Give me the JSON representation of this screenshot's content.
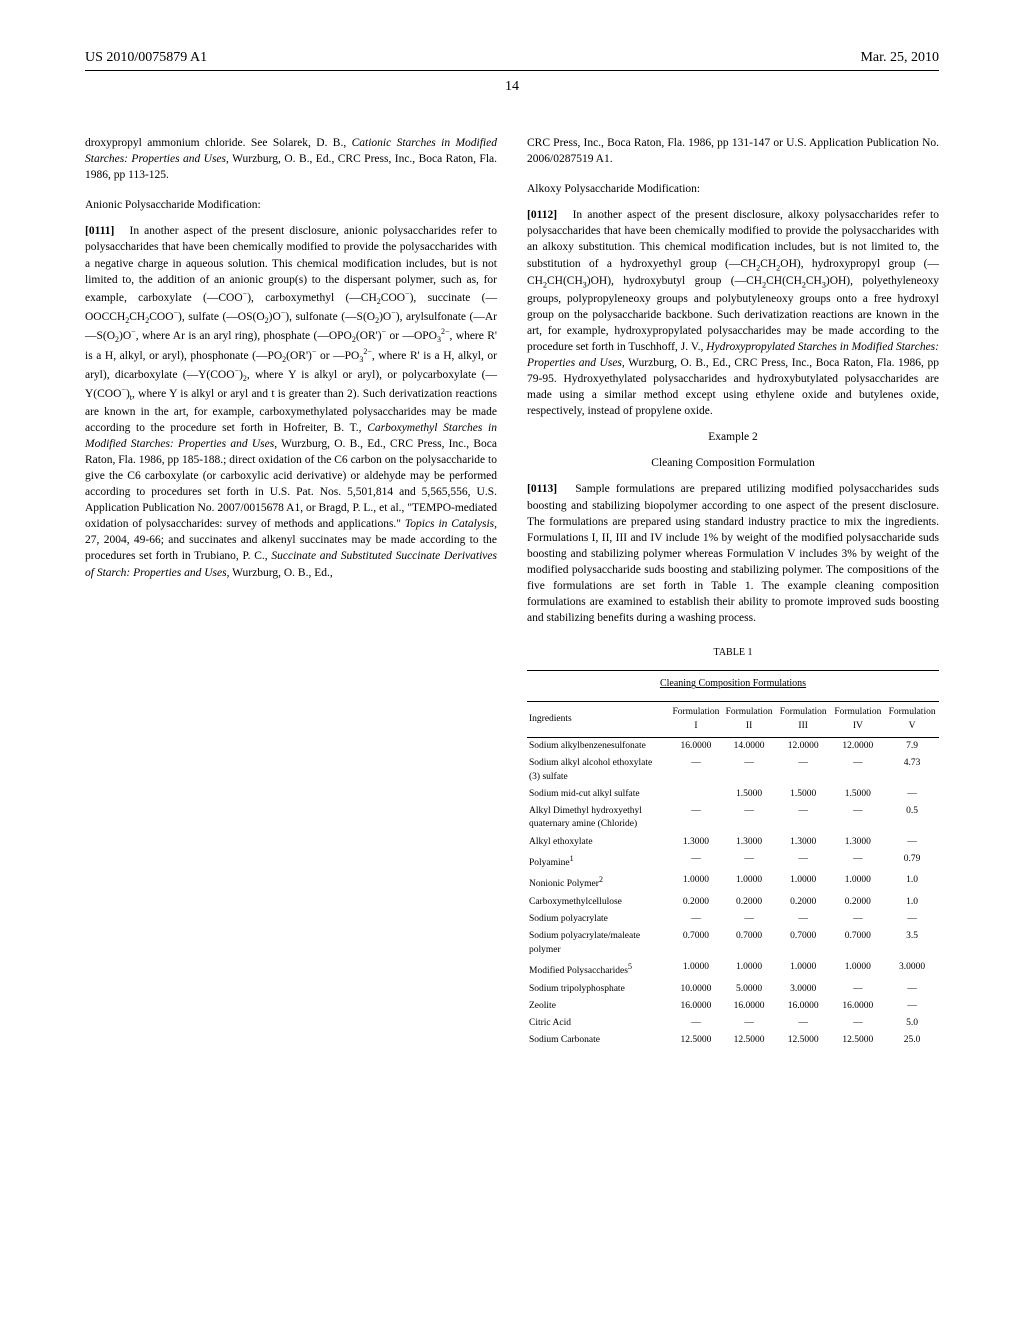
{
  "header": {
    "pub_number": "US 2010/0075879 A1",
    "date": "Mar. 25, 2010"
  },
  "page_number": "14",
  "left_col": {
    "para1": "droxypropyl ammonium chloride. See Solarek, D. B., Cationic Starches in Modified Starches: Properties and Uses, Wurzburg, O. B., Ed., CRC Press, Inc., Boca Raton, Fla. 1986, pp 113-125.",
    "section1_title": "Anionic Polysaccharide Modification:",
    "para2_num": "[0111]",
    "para2": "In another aspect of the present disclosure, anionic polysaccharides refer to polysaccharides that have been chemically modified to provide the polysaccharides with a negative charge in aqueous solution. This chemical modification includes, but is not limited to, the addition of an anionic group(s) to the dispersant polymer, such as, for example, carboxylate (—COO⁻), carboxymethyl (—CH₂COO⁻), succinate (—OOCCH₂CH₂COO⁻), sulfate (—OS(O₂)O⁻), sulfonate (—S(O₂)O⁻), arylsulfonate (—Ar—S(O₂)O⁻, where Ar is an aryl ring), phosphate (—OPO₂(OR')⁻ or —OPO₃²⁻, where R' is a H, alkyl, or aryl), phosphonate (—PO₂(OR')⁻ or —PO₃²⁻, where R' is a H, alkyl, or aryl), dicarboxylate (—Y(COO⁻)₂, where Y is alkyl or aryl), or polycarboxylate (—Y(COO⁻)ₜ, where Y is alkyl or aryl and t is greater than 2). Such derivatization reactions are known in the art, for example, carboxymethylated polysaccharides may be made according to the procedure set forth in Hofreiter, B. T., Carboxymethyl Starches in Modified Starches: Properties and Uses, Wurzburg, O. B., Ed., CRC Press, Inc., Boca Raton, Fla. 1986, pp 185-188.; direct oxidation of the C6 carbon on the polysaccharide to give the C6 carboxylate (or carboxylic acid derivative) or aldehyde may be performed according to procedures set forth in U.S. Pat. Nos. 5,501,814 and 5,565,556, U.S. Application Publication No. 2007/0015678 A1, or Bragd, P. L., et al., \"TEMPO-mediated oxidation of polysaccharides: survey of methods and applications.\" Topics in Catalysis, 27, 2004, 49-66; and succinates and alkenyl succinates may be made according to the procedures set forth in Trubiano, P. C., Succinate and Substituted Succinate Derivatives of Starch: Properties and Uses, Wurzburg, O. B., Ed.,"
  },
  "right_col": {
    "para1": "CRC Press, Inc., Boca Raton, Fla. 1986, pp 131-147 or U.S. Application Publication No. 2006/0287519 A1.",
    "section1_title": "Alkoxy Polysaccharide Modification:",
    "para2_num": "[0112]",
    "para2": "In another aspect of the present disclosure, alkoxy polysaccharides refer to polysaccharides that have been chemically modified to provide the polysaccharides with an alkoxy substitution. This chemical modification includes, but is not limited to, the substitution of a hydroxyethyl group (—CH₂CH₂OH), hydroxypropyl group (—CH₂CH(CH₃)OH), hydroxybutyl group (—CH₂CH(CH₂CH₃)OH), polyethyleneoxy groups, polypropyleneoxy groups and polybutyleneoxy groups onto a free hydroxyl group on the polysaccharide backbone. Such derivatization reactions are known in the art, for example, hydroxypropylated polysaccharides may be made according to the procedure set forth in Tuschhoff, J. V., Hydroxypropylated Starches in Modified Starches: Properties and Uses, Wurzburg, O. B., Ed., CRC Press, Inc., Boca Raton, Fla. 1986, pp 79-95. Hydroxyethylated polysaccharides and hydroxybutylated polysaccharides are made using a similar method except using ethylene oxide and butylenes oxide, respectively, instead of propylene oxide.",
    "example_title": "Example 2",
    "example_subtitle": "Cleaning Composition Formulation",
    "para3_num": "[0113]",
    "para3": "Sample formulations are prepared utilizing modified polysaccharides suds boosting and stabilizing biopolymer according to one aspect of the present disclosure. The formulations are prepared using standard industry practice to mix the ingredients. Formulations I, II, III and IV include 1% by weight of the modified polysaccharide suds boosting and stabilizing polymer whereas Formulation V includes 3% by weight of the modified polysaccharide suds boosting and stabilizing polymer. The compositions of the five formulations are set forth in Table 1. The example cleaning composition formulations are examined to establish their ability to promote improved suds boosting and stabilizing benefits during a washing process."
  },
  "table": {
    "label": "TABLE 1",
    "caption": "Cleaning Composition Formulations",
    "columns": [
      "Ingredients",
      "Formulation I",
      "Formulation II",
      "Formulation III",
      "Formulation IV",
      "Formulation V"
    ],
    "rows": [
      [
        "Sodium alkylbenzenesulfonate",
        "16.0000",
        "14.0000",
        "12.0000",
        "12.0000",
        "7.9"
      ],
      [
        "Sodium alkyl alcohol ethoxylate (3) sulfate",
        "—",
        "—",
        "—",
        "—",
        "4.73"
      ],
      [
        "Sodium mid-cut alkyl sulfate",
        "",
        "1.5000",
        "1.5000",
        "1.5000",
        "—"
      ],
      [
        "Alkyl Dimethyl hydroxyethyl quaternary amine (Chloride)",
        "—",
        "—",
        "—",
        "—",
        "0.5"
      ],
      [
        "Alkyl ethoxylate",
        "1.3000",
        "1.3000",
        "1.3000",
        "1.3000",
        "—"
      ],
      [
        "Polyamine¹",
        "—",
        "—",
        "—",
        "—",
        "0.79"
      ],
      [
        "Nonionic Polymer²",
        "1.0000",
        "1.0000",
        "1.0000",
        "1.0000",
        "1.0"
      ],
      [
        "Carboxymethylcellulose",
        "0.2000",
        "0.2000",
        "0.2000",
        "0.2000",
        "1.0"
      ],
      [
        "Sodium polyacrylate",
        "—",
        "—",
        "—",
        "—",
        "—"
      ],
      [
        "Sodium polyacrylate/maleate polymer",
        "0.7000",
        "0.7000",
        "0.7000",
        "0.7000",
        "3.5"
      ],
      [
        "Modified Polysaccharides⁵",
        "1.0000",
        "1.0000",
        "1.0000",
        "1.0000",
        "3.0000"
      ],
      [
        "Sodium tripolyphosphate",
        "10.0000",
        "5.0000",
        "3.0000",
        "—",
        "—"
      ],
      [
        "Zeolite",
        "16.0000",
        "16.0000",
        "16.0000",
        "16.0000",
        "—"
      ],
      [
        "Citric Acid",
        "—",
        "—",
        "—",
        "—",
        "5.0"
      ],
      [
        "Sodium Carbonate",
        "12.5000",
        "12.5000",
        "12.5000",
        "12.5000",
        "25.0"
      ]
    ]
  }
}
